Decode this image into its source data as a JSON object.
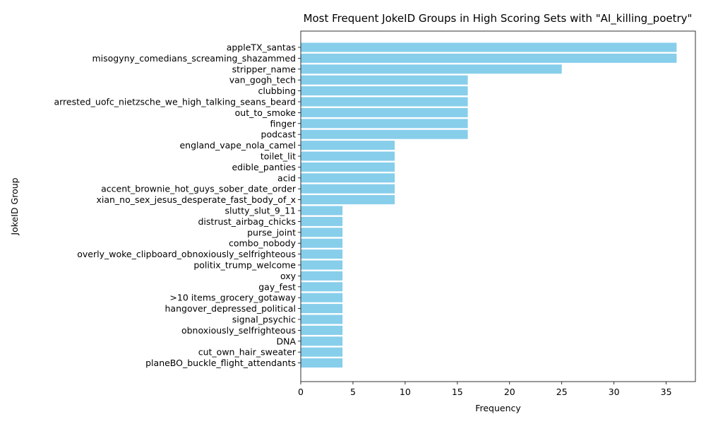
{
  "chart_data": {
    "type": "bar",
    "orientation": "horizontal",
    "title": "Most Frequent JokeID Groups in High Scoring Sets with \"AI_killing_poetry\"",
    "xlabel": "Frequency",
    "ylabel": "JokeID Group",
    "xlim": [
      0,
      37.8
    ],
    "xticks": [
      0,
      5,
      10,
      15,
      20,
      25,
      30,
      35
    ],
    "grid": false,
    "bar_color": "#87ceeb",
    "categories": [
      "appleTX_santas",
      "misogyny_comedians_screaming_shazammed",
      "stripper_name",
      "van_gogh_tech",
      "clubbing",
      "arrested_uofc_nietzsche_we_high_talking_seans_beard",
      "out_to_smoke",
      "finger",
      "podcast",
      "england_vape_nola_camel",
      "toilet_lit",
      "edible_panties",
      "acid",
      "accent_brownie_hot_guys_sober_date_order",
      "xian_no_sex_jesus_desperate_fast_body_of_x",
      "slutty_slut_9_11",
      "distrust_airbag_chicks",
      "purse_joint",
      "combo_nobody",
      "overly_woke_clipboard_obnoxiously_selfrighteous",
      "politix_trump_welcome",
      "oxy",
      "gay_fest",
      ">10 items_grocery_gotaway",
      "hangover_depressed_political",
      "signal_psychic",
      "obnoxiously_selfrighteous",
      "DNA",
      "cut_own_hair_sweater",
      "planeBO_buckle_flight_attendants"
    ],
    "values": [
      36,
      36,
      25,
      16,
      16,
      16,
      16,
      16,
      16,
      9,
      9,
      9,
      9,
      9,
      9,
      4,
      4,
      4,
      4,
      4,
      4,
      4,
      4,
      4,
      4,
      4,
      4,
      4,
      4,
      4
    ]
  }
}
